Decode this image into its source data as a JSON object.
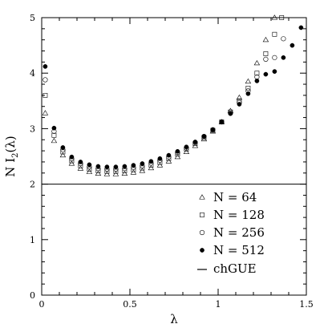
{
  "chart_data": {
    "type": "scatter",
    "xlabel": "λ",
    "ylabel_main": "N I",
    "ylabel_sub": "2",
    "ylabel_arg": "(λ)",
    "xlim": [
      0,
      1.5
    ],
    "ylim": [
      0,
      5
    ],
    "x_ticks": [
      0,
      0.5,
      1,
      1.5
    ],
    "x_tick_labels": [
      "0",
      "0.5",
      "1",
      "1.5"
    ],
    "y_ticks": [
      0,
      1,
      2,
      3,
      4,
      5
    ],
    "y_tick_labels": [
      "0",
      "1",
      "2",
      "3",
      "4",
      "5"
    ],
    "legend_placement": "bottom-right",
    "reference_line": {
      "name": "chGUE",
      "y": 2
    },
    "series": [
      {
        "name": "N  =  64",
        "marker": "triangle",
        "x": [
          0.02,
          0.07,
          0.12,
          0.17,
          0.22,
          0.27,
          0.32,
          0.37,
          0.42,
          0.47,
          0.52,
          0.57,
          0.62,
          0.67,
          0.72,
          0.77,
          0.82,
          0.87,
          0.92,
          0.97,
          1.02,
          1.07,
          1.12,
          1.17,
          1.22,
          1.27,
          1.32
        ],
        "y": [
          3.28,
          2.78,
          2.52,
          2.37,
          2.28,
          2.22,
          2.19,
          2.18,
          2.18,
          2.19,
          2.21,
          2.24,
          2.29,
          2.34,
          2.41,
          2.49,
          2.58,
          2.69,
          2.81,
          2.95,
          3.12,
          3.32,
          3.56,
          3.85,
          4.18,
          4.6,
          5.0
        ]
      },
      {
        "name": "N  =  128",
        "marker": "square",
        "x": [
          0.02,
          0.07,
          0.12,
          0.17,
          0.22,
          0.27,
          0.32,
          0.37,
          0.42,
          0.47,
          0.52,
          0.57,
          0.62,
          0.67,
          0.72,
          0.77,
          0.82,
          0.87,
          0.92,
          0.97,
          1.02,
          1.07,
          1.12,
          1.17,
          1.22,
          1.27,
          1.32,
          1.36
        ],
        "y": [
          3.6,
          2.88,
          2.58,
          2.42,
          2.33,
          2.27,
          2.24,
          2.23,
          2.23,
          2.24,
          2.26,
          2.29,
          2.34,
          2.39,
          2.46,
          2.54,
          2.63,
          2.73,
          2.84,
          2.97,
          3.12,
          3.3,
          3.5,
          3.73,
          4.0,
          4.35,
          4.7,
          5.0
        ]
      },
      {
        "name": "N  =  256",
        "marker": "circle-open",
        "x": [
          0.02,
          0.07,
          0.12,
          0.17,
          0.22,
          0.27,
          0.32,
          0.37,
          0.42,
          0.47,
          0.52,
          0.57,
          0.62,
          0.67,
          0.72,
          0.77,
          0.82,
          0.87,
          0.92,
          0.97,
          1.02,
          1.07,
          1.12,
          1.17,
          1.22,
          1.27,
          1.32,
          1.37
        ],
        "y": [
          3.88,
          2.95,
          2.62,
          2.46,
          2.37,
          2.31,
          2.28,
          2.27,
          2.27,
          2.28,
          2.3,
          2.33,
          2.38,
          2.43,
          2.49,
          2.57,
          2.65,
          2.75,
          2.86,
          2.98,
          3.12,
          3.28,
          3.47,
          3.68,
          3.93,
          4.25,
          4.28,
          4.62
        ]
      },
      {
        "name": "N  =  512",
        "marker": "circle-filled",
        "x": [
          0.02,
          0.07,
          0.12,
          0.17,
          0.22,
          0.27,
          0.32,
          0.37,
          0.42,
          0.47,
          0.52,
          0.57,
          0.62,
          0.67,
          0.72,
          0.77,
          0.82,
          0.87,
          0.92,
          0.97,
          1.02,
          1.07,
          1.12,
          1.17,
          1.22,
          1.27,
          1.32,
          1.37,
          1.42,
          1.47
        ],
        "y": [
          4.12,
          3.01,
          2.66,
          2.49,
          2.4,
          2.35,
          2.32,
          2.31,
          2.31,
          2.32,
          2.34,
          2.37,
          2.41,
          2.46,
          2.52,
          2.59,
          2.67,
          2.76,
          2.86,
          2.98,
          3.12,
          3.27,
          3.44,
          3.63,
          3.86,
          3.98,
          4.03,
          4.28,
          4.5,
          4.82
        ]
      }
    ]
  }
}
